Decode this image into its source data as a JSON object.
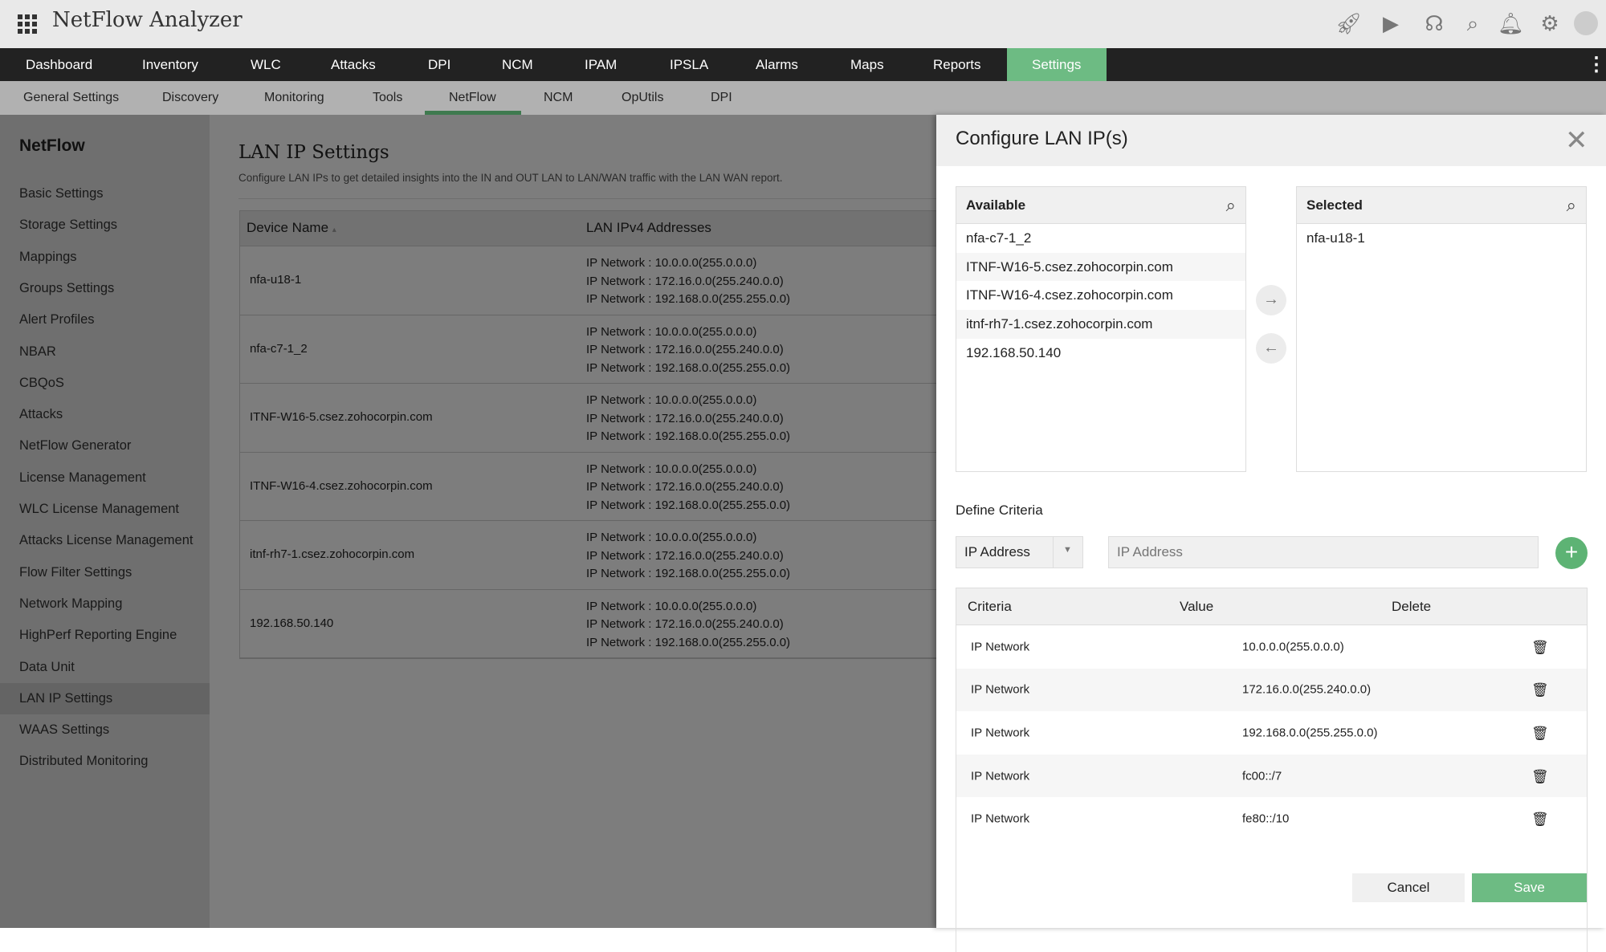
{
  "app": {
    "title": "NetFlow Analyzer"
  },
  "top_icons": [
    "rocket-icon",
    "presentation-icon",
    "headset-icon",
    "search-icon",
    "bell-icon",
    "gear-icon",
    "user-avatar-icon"
  ],
  "nav": {
    "items": [
      "Dashboard",
      "Inventory",
      "WLC",
      "Attacks",
      "DPI",
      "NCM",
      "IPAM",
      "IPSLA",
      "Alarms",
      "Maps",
      "Reports",
      "Settings"
    ],
    "active": "Settings",
    "more": "⋮"
  },
  "subnav": {
    "items": [
      "General Settings",
      "Discovery",
      "Monitoring",
      "Tools",
      "NetFlow",
      "NCM",
      "OpUtils",
      "DPI"
    ],
    "active": "NetFlow"
  },
  "sidebar": {
    "title": "NetFlow",
    "items": [
      "Basic Settings",
      "Storage Settings",
      "Mappings",
      "Groups Settings",
      "Alert Profiles",
      "NBAR",
      "CBQoS",
      "Attacks",
      "NetFlow Generator",
      "License Management",
      "WLC License Management",
      "Attacks License Management",
      "Flow Filter Settings",
      "Network Mapping",
      "HighPerf Reporting Engine",
      "Data Unit",
      "LAN IP Settings",
      "WAAS Settings",
      "Distributed Monitoring"
    ],
    "active": "LAN IP Settings"
  },
  "page": {
    "title": "LAN IP Settings",
    "description": "Configure LAN IPs to get detailed insights into the IN and OUT LAN to LAN/WAN traffic with the LAN WAN report.",
    "columns": [
      "Device Name",
      "LAN IPv4 Addresses"
    ],
    "rows": [
      {
        "device": "nfa-u18-1",
        "ips": [
          "IP Network : 10.0.0.0(255.0.0.0)",
          "IP Network : 172.16.0.0(255.240.0.0)",
          "IP Network : 192.168.0.0(255.255.0.0)"
        ]
      },
      {
        "device": "nfa-c7-1_2",
        "ips": [
          "IP Network : 10.0.0.0(255.0.0.0)",
          "IP Network : 172.16.0.0(255.240.0.0)",
          "IP Network : 192.168.0.0(255.255.0.0)"
        ]
      },
      {
        "device": "ITNF-W16-5.csez.zohocorpin.com",
        "ips": [
          "IP Network : 10.0.0.0(255.0.0.0)",
          "IP Network : 172.16.0.0(255.240.0.0)",
          "IP Network : 192.168.0.0(255.255.0.0)"
        ]
      },
      {
        "device": "ITNF-W16-4.csez.zohocorpin.com",
        "ips": [
          "IP Network : 10.0.0.0(255.0.0.0)",
          "IP Network : 172.16.0.0(255.240.0.0)",
          "IP Network : 192.168.0.0(255.255.0.0)"
        ]
      },
      {
        "device": "itnf-rh7-1.csez.zohocorpin.com",
        "ips": [
          "IP Network : 10.0.0.0(255.0.0.0)",
          "IP Network : 172.16.0.0(255.240.0.0)",
          "IP Network : 192.168.0.0(255.255.0.0)"
        ]
      },
      {
        "device": "192.168.50.140",
        "ips": [
          "IP Network : 10.0.0.0(255.0.0.0)",
          "IP Network : 172.16.0.0(255.240.0.0)",
          "IP Network : 192.168.0.0(255.255.0.0)"
        ]
      }
    ]
  },
  "modal": {
    "title": "Configure LAN IP(s)",
    "available": {
      "label": "Available",
      "items": [
        "nfa-c7-1_2",
        "ITNF-W16-5.csez.zohocorpin.com",
        "ITNF-W16-4.csez.zohocorpin.com",
        "itnf-rh7-1.csez.zohocorpin.com",
        "192.168.50.140"
      ]
    },
    "selected": {
      "label": "Selected",
      "items": [
        "nfa-u18-1"
      ]
    },
    "define_criteria": "Define Criteria",
    "criteria_select": "IP Address",
    "criteria_input_placeholder": "IP Address",
    "criteria_columns": [
      "Criteria",
      "Value",
      "Delete"
    ],
    "criteria_rows": [
      {
        "criteria": "IP Network",
        "value": "10.0.0.0(255.0.0.0)"
      },
      {
        "criteria": "IP Network",
        "value": "172.16.0.0(255.240.0.0)"
      },
      {
        "criteria": "IP Network",
        "value": "192.168.0.0(255.255.0.0)"
      },
      {
        "criteria": "IP Network",
        "value": "fc00::/7"
      },
      {
        "criteria": "IP Network",
        "value": "fe80::/10"
      }
    ],
    "cancel": "Cancel",
    "save": "Save"
  },
  "colors": {
    "accent": "#6dbb83",
    "nav_bg": "#222222",
    "add_button": "#5db374"
  }
}
